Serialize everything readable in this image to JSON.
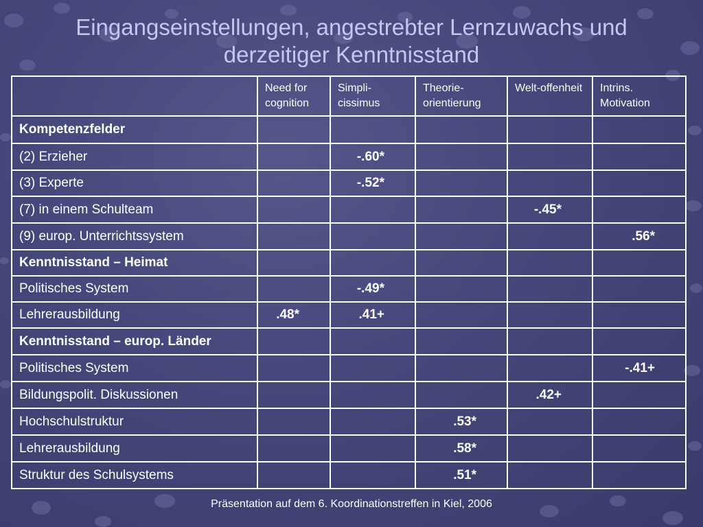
{
  "title": {
    "line1": "Eingangseinstellungen, angestrebter Lernzuwachs und",
    "line2": "derzeitiger Kenntnisstand"
  },
  "table": {
    "headers": [
      "",
      "Need for cognition",
      "Simpli-cissimus",
      "Theorie-orientierung",
      "Welt-offenheit",
      "Intrins. Motivation"
    ],
    "rows": [
      {
        "label": "Kompetenzfelder",
        "section": true,
        "cells": [
          "",
          "",
          "",
          "",
          ""
        ]
      },
      {
        "label": "(2) Erzieher",
        "section": false,
        "cells": [
          "",
          "-.60*",
          "",
          "",
          ""
        ]
      },
      {
        "label": "(3) Experte",
        "section": false,
        "cells": [
          "",
          "-.52*",
          "",
          "",
          ""
        ]
      },
      {
        "label": "(7) in einem Schulteam",
        "section": false,
        "cells": [
          "",
          "",
          "",
          "-.45*",
          ""
        ]
      },
      {
        "label": "(9) europ. Unterrichtssystem",
        "section": false,
        "cells": [
          "",
          "",
          "",
          "",
          ".56*"
        ]
      },
      {
        "label": "Kenntnisstand – Heimat",
        "section": true,
        "cells": [
          "",
          "",
          "",
          "",
          ""
        ]
      },
      {
        "label": "Politisches System",
        "section": false,
        "cells": [
          "",
          "-.49*",
          "",
          "",
          ""
        ]
      },
      {
        "label": "Lehrerausbildung",
        "section": false,
        "cells": [
          ".48*",
          ".41+",
          "",
          "",
          ""
        ]
      },
      {
        "label": "Kenntnisstand – europ. Länder",
        "section": true,
        "cells": [
          "",
          "",
          "",
          "",
          ""
        ]
      },
      {
        "label": "Politisches System",
        "section": false,
        "cells": [
          "",
          "",
          "",
          "",
          "-.41+"
        ]
      },
      {
        "label": "Bildungspolit. Diskussionen",
        "section": false,
        "cells": [
          "",
          "",
          "",
          ".42+",
          ""
        ]
      },
      {
        "label": "Hochschulstruktur",
        "section": false,
        "cells": [
          "",
          "",
          ".53*",
          "",
          ""
        ]
      },
      {
        "label": "Lehrerausbildung",
        "section": false,
        "cells": [
          "",
          "",
          ".58*",
          "",
          ""
        ]
      },
      {
        "label": "Struktur des Schulsystems",
        "section": false,
        "cells": [
          "",
          "",
          ".51*",
          "",
          ""
        ]
      }
    ]
  },
  "footer": "Präsentation auf dem 6. Koordinationstreffen in Kiel, 2006",
  "colors": {
    "background": "#45477a",
    "title": "#c3c8ee",
    "text": "#ffffff",
    "grid": "#ffffff"
  }
}
